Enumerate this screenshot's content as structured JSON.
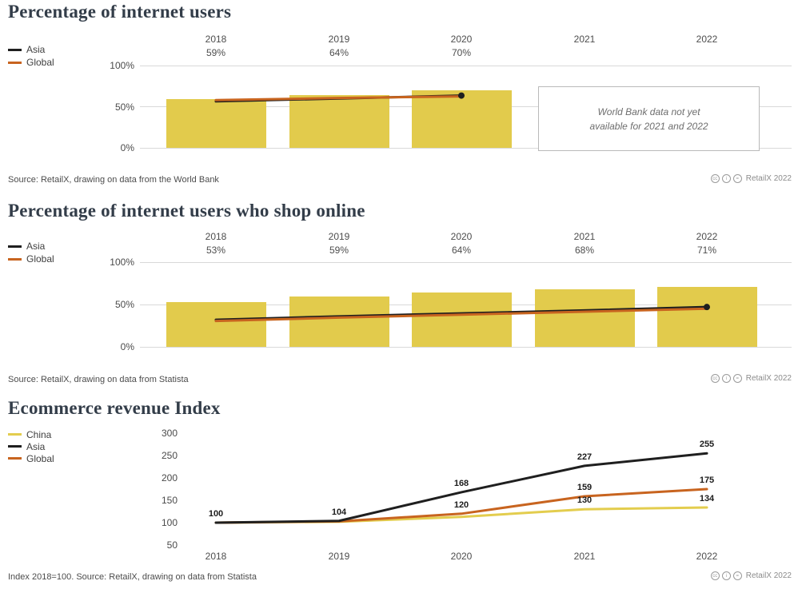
{
  "credit_icons": [
    "cc",
    "i",
    "="
  ],
  "sections": [
    {
      "legend": [
        {
          "label": "Asia",
          "color": "#1f1f1f"
        },
        {
          "label": "Global",
          "color": "#c8641f"
        }
      ],
      "note": {
        "line1": "World Bank data not yet",
        "line2": "available for 2021 and 2022"
      },
      "source": "Source: RetailX, drawing on data from the World Bank",
      "credit": "RetailX 2022"
    },
    {
      "legend": [
        {
          "label": "Asia",
          "color": "#1f1f1f"
        },
        {
          "label": "Global",
          "color": "#c8641f"
        }
      ],
      "source": "Source: RetailX, drawing on data from Statista",
      "credit": "RetailX 2022"
    },
    {
      "legend": [
        {
          "label": "China",
          "color": "#e3cd4e"
        },
        {
          "label": "Asia",
          "color": "#1f1f1f"
        },
        {
          "label": "Global",
          "color": "#c8641f"
        }
      ],
      "source": "Index 2018=100. Source: RetailX, drawing on data from Statista",
      "credit": "RetailX 2022"
    }
  ],
  "chart_data": [
    {
      "type": "bar+line",
      "title": "Percentage of internet users",
      "categories": [
        "2018",
        "2019",
        "2020",
        "2021",
        "2022"
      ],
      "column_labels": [
        "59%",
        "64%",
        "70%",
        "",
        ""
      ],
      "bars": {
        "name": "Internet users",
        "color": "#e2cb4c",
        "values": [
          59,
          64,
          70,
          null,
          null
        ]
      },
      "series": [
        {
          "name": "Asia",
          "color": "#1f1f1f",
          "values": [
            56.5,
            60,
            63.5,
            null,
            null
          ]
        },
        {
          "name": "Global",
          "color": "#c8641f",
          "values": [
            58,
            60.5,
            62.5,
            null,
            null
          ]
        }
      ],
      "ylim": [
        0,
        100
      ],
      "yticks": [
        {
          "label": "0%",
          "value": 0
        },
        {
          "label": "50%",
          "value": 50
        },
        {
          "label": "100%",
          "value": 100
        }
      ],
      "annotation": "World Bank data not yet available for 2021 and 2022",
      "grid": true,
      "legend_position": "top-left"
    },
    {
      "type": "bar+line",
      "title": "Percentage of internet users who shop online",
      "categories": [
        "2018",
        "2019",
        "2020",
        "2021",
        "2022"
      ],
      "column_labels": [
        "53%",
        "59%",
        "64%",
        "68%",
        "71%"
      ],
      "bars": {
        "name": "Internet users who shop online",
        "color": "#e2cb4c",
        "values": [
          53,
          59,
          64,
          68,
          71
        ]
      },
      "series": [
        {
          "name": "Asia",
          "color": "#1f1f1f",
          "values": [
            32,
            36,
            39.5,
            43,
            47
          ]
        },
        {
          "name": "Global",
          "color": "#c8641f",
          "values": [
            30.5,
            34.5,
            38,
            41.5,
            45
          ]
        }
      ],
      "ylim": [
        0,
        100
      ],
      "yticks": [
        {
          "label": "0%",
          "value": 0
        },
        {
          "label": "50%",
          "value": 50
        },
        {
          "label": "100%",
          "value": 100
        }
      ],
      "grid": true,
      "legend_position": "top-left"
    },
    {
      "type": "line",
      "title": "Ecommerce revenue Index",
      "x": [
        "2018",
        "2019",
        "2020",
        "2021",
        "2022"
      ],
      "series": [
        {
          "name": "China",
          "color": "#e3cd4e",
          "values": [
            100,
            102,
            113,
            130,
            134
          ],
          "labels": [
            null,
            null,
            null,
            "130",
            "134"
          ]
        },
        {
          "name": "Global",
          "color": "#c8641f",
          "values": [
            100,
            103,
            120,
            159,
            175
          ],
          "labels": [
            null,
            null,
            "120",
            "159",
            "175"
          ]
        },
        {
          "name": "Asia",
          "color": "#1f1f1f",
          "values": [
            100,
            104,
            168,
            227,
            255
          ],
          "labels": [
            "100",
            "104",
            "168",
            "227",
            "255"
          ]
        }
      ],
      "ylim": [
        50,
        300
      ],
      "yticks": [
        300,
        250,
        200,
        150,
        100,
        50
      ],
      "note": "Index 2018=100",
      "grid": false,
      "legend_position": "top-left"
    }
  ]
}
